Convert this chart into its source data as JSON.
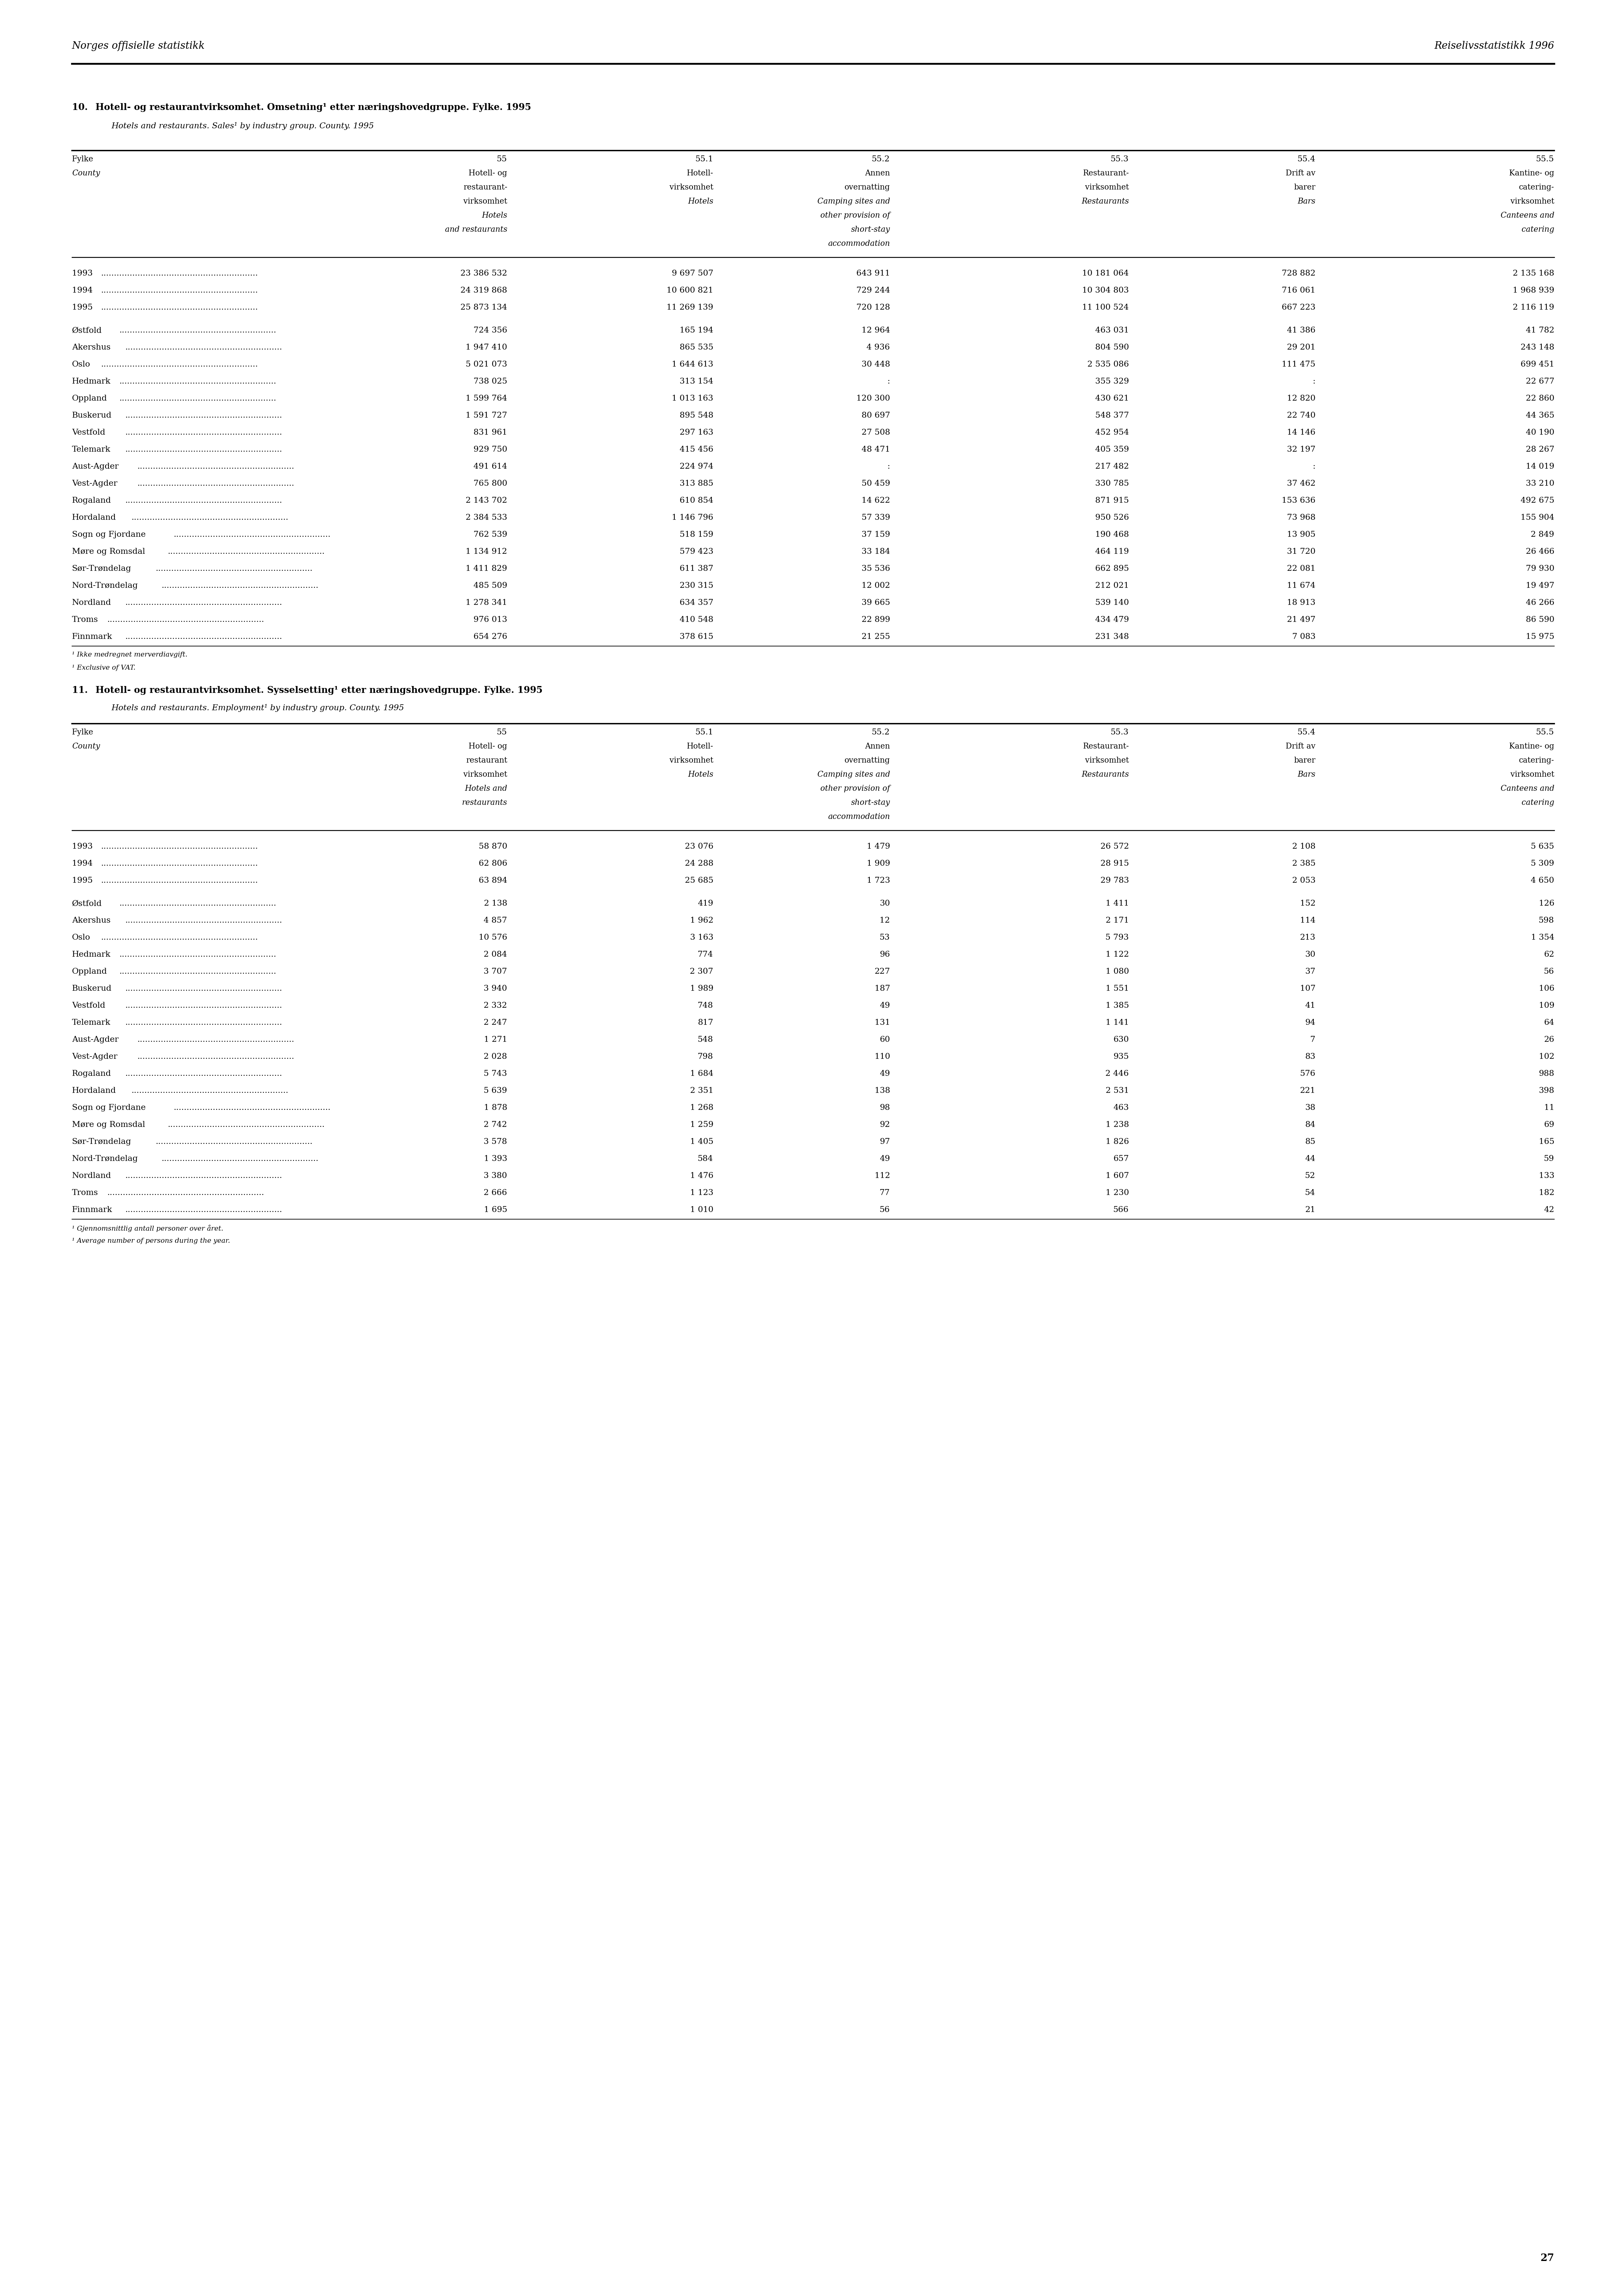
{
  "page_header_left": "Norges offisielle statistikk",
  "page_header_right": "Reiselivsstatistikk 1996",
  "page_number": "27",
  "table10": {
    "title_no": "10.  Hotell- og restaurantvirksomhet. Omsetning¹ etter næringshovedgruppe. Fylke. 1995",
    "title_en": "Hotels and restaurants. Sales¹ by industry group. County. 1995",
    "col_headers": {
      "col1_label": "Fylke",
      "col1_label_en": "County",
      "col2_code": "55",
      "col2_line1": "Hotell- og",
      "col2_line2": "restaurant-",
      "col2_line3": "virksomhet",
      "col2_line4": "Hotels",
      "col2_line5": "and restaurants",
      "col3_code": "55.1",
      "col3_line1": "Hotell-",
      "col3_line2": "virksomhet",
      "col3_line3": "Hotels",
      "col4_code": "55.2",
      "col4_line1": "Annen",
      "col4_line2": "overnatting",
      "col4_line3": "Camping sites and",
      "col4_line4": "other provision of",
      "col4_line5": "short-stay",
      "col4_line6": "accommodation",
      "col5_code": "55.3",
      "col5_line1": "Restaurant-",
      "col5_line2": "virksomhet",
      "col5_line3": "Restaurants",
      "col6_code": "55.4",
      "col6_line1": "Drift av",
      "col6_line2": "barer",
      "col6_line3": "Bars",
      "col7_code": "55.5",
      "col7_line1": "Kantine- og",
      "col7_line2": "catering-",
      "col7_line3": "virksomhet",
      "col7_line4": "Canteens and",
      "col7_line5": "catering"
    },
    "rows": [
      {
        "label": "1993",
        "dots": true,
        "v1": "23 386 532",
        "v2": "9 697 507",
        "v3": "643 911",
        "v4": "10 181 064",
        "v5": "728 882",
        "v6": "2 135 168"
      },
      {
        "label": "1994",
        "dots": true,
        "v1": "24 319 868",
        "v2": "10 600 821",
        "v3": "729 244",
        "v4": "10 304 803",
        "v5": "716 061",
        "v6": "1 968 939"
      },
      {
        "label": "1995",
        "dots": true,
        "v1": "25 873 134",
        "v2": "11 269 139",
        "v3": "720 128",
        "v4": "11 100 524",
        "v5": "667 223",
        "v6": "2 116 119"
      },
      {
        "label": "",
        "dots": false,
        "v1": "",
        "v2": "",
        "v3": "",
        "v4": "",
        "v5": "",
        "v6": ""
      },
      {
        "label": "Østfold",
        "dots": true,
        "v1": "724 356",
        "v2": "165 194",
        "v3": "12 964",
        "v4": "463 031",
        "v5": "41 386",
        "v6": "41 782"
      },
      {
        "label": "Akershus",
        "dots": true,
        "v1": "1 947 410",
        "v2": "865 535",
        "v3": "4 936",
        "v4": "804 590",
        "v5": "29 201",
        "v6": "243 148"
      },
      {
        "label": "Oslo",
        "dots": true,
        "v1": "5 021 073",
        "v2": "1 644 613",
        "v3": "30 448",
        "v4": "2 535 086",
        "v5": "111 475",
        "v6": "699 451"
      },
      {
        "label": "Hedmark",
        "dots": true,
        "v1": "738 025",
        "v2": "313 154",
        "v3": ":",
        "v4": "355 329",
        "v5": ":",
        "v6": "22 677"
      },
      {
        "label": "Oppland",
        "dots": true,
        "v1": "1 599 764",
        "v2": "1 013 163",
        "v3": "120 300",
        "v4": "430 621",
        "v5": "12 820",
        "v6": "22 860"
      },
      {
        "label": "Buskerud",
        "dots": true,
        "v1": "1 591 727",
        "v2": "895 548",
        "v3": "80 697",
        "v4": "548 377",
        "v5": "22 740",
        "v6": "44 365"
      },
      {
        "label": "Vestfold",
        "dots": true,
        "v1": "831 961",
        "v2": "297 163",
        "v3": "27 508",
        "v4": "452 954",
        "v5": "14 146",
        "v6": "40 190"
      },
      {
        "label": "Telemark",
        "dots": true,
        "v1": "929 750",
        "v2": "415 456",
        "v3": "48 471",
        "v4": "405 359",
        "v5": "32 197",
        "v6": "28 267"
      },
      {
        "label": "Aust-Agder",
        "dots": true,
        "v1": "491 614",
        "v2": "224 974",
        "v3": ":",
        "v4": "217 482",
        "v5": ":",
        "v6": "14 019"
      },
      {
        "label": "Vest-Agder",
        "dots": true,
        "v1": "765 800",
        "v2": "313 885",
        "v3": "50 459",
        "v4": "330 785",
        "v5": "37 462",
        "v6": "33 210"
      },
      {
        "label": "Rogaland",
        "dots": true,
        "v1": "2 143 702",
        "v2": "610 854",
        "v3": "14 622",
        "v4": "871 915",
        "v5": "153 636",
        "v6": "492 675"
      },
      {
        "label": "Hordaland",
        "dots": true,
        "v1": "2 384 533",
        "v2": "1 146 796",
        "v3": "57 339",
        "v4": "950 526",
        "v5": "73 968",
        "v6": "155 904"
      },
      {
        "label": "Sogn og Fjordane",
        "dots": true,
        "v1": "762 539",
        "v2": "518 159",
        "v3": "37 159",
        "v4": "190 468",
        "v5": "13 905",
        "v6": "2 849"
      },
      {
        "label": "Møre og Romsdal",
        "dots": true,
        "v1": "1 134 912",
        "v2": "579 423",
        "v3": "33 184",
        "v4": "464 119",
        "v5": "31 720",
        "v6": "26 466"
      },
      {
        "label": "Sør-Trøndelag",
        "dots": true,
        "v1": "1 411 829",
        "v2": "611 387",
        "v3": "35 536",
        "v4": "662 895",
        "v5": "22 081",
        "v6": "79 930"
      },
      {
        "label": "Nord-Trøndelag",
        "dots": true,
        "v1": "485 509",
        "v2": "230 315",
        "v3": "12 002",
        "v4": "212 021",
        "v5": "11 674",
        "v6": "19 497"
      },
      {
        "label": "Nordland",
        "dots": true,
        "v1": "1 278 341",
        "v2": "634 357",
        "v3": "39 665",
        "v4": "539 140",
        "v5": "18 913",
        "v6": "46 266"
      },
      {
        "label": "Troms",
        "dots": true,
        "v1": "976 013",
        "v2": "410 548",
        "v3": "22 899",
        "v4": "434 479",
        "v5": "21 497",
        "v6": "86 590"
      },
      {
        "label": "Finnmark",
        "dots": true,
        "v1": "654 276",
        "v2": "378 615",
        "v3": "21 255",
        "v4": "231 348",
        "v5": "7 083",
        "v6": "15 975"
      }
    ],
    "footnote1_no": "¹ Ikke medregnet merverdiavgift.",
    "footnote1_en": "¹ Exclusive of VAT."
  },
  "table11": {
    "title_no": "11.  Hotell- og restaurantvirksomhet. Sysselsetting¹ etter næringshovedgruppe. Fylke. 1995",
    "title_en": "Hotels and restaurants. Employment¹ by industry group. County. 1995",
    "col_headers": {
      "col1_label": "Fylke",
      "col1_label_en": "County",
      "col2_code": "55",
      "col2_line1": "Hotell- og",
      "col2_line2": "restaurant",
      "col2_line3": "virksomhet",
      "col2_line4": "Hotels and",
      "col2_line5": "restaurants",
      "col3_code": "55.1",
      "col3_line1": "Hotell-",
      "col3_line2": "virksomhet",
      "col3_line3": "Hotels",
      "col4_code": "55.2",
      "col4_line1": "Annen",
      "col4_line2": "overnatting",
      "col4_line3": "Camping sites and",
      "col4_line4": "other provision of",
      "col4_line5": "short-stay",
      "col4_line6": "accommodation",
      "col5_code": "55.3",
      "col5_line1": "Restaurant-",
      "col5_line2": "virksomhet",
      "col5_line3": "Restaurants",
      "col6_code": "55.4",
      "col6_line1": "Drift av",
      "col6_line2": "barer",
      "col6_line3": "Bars",
      "col7_code": "55.5",
      "col7_line1": "Kantine- og",
      "col7_line2": "catering-",
      "col7_line3": "virksomhet",
      "col7_line4": "Canteens and",
      "col7_line5": "catering"
    },
    "rows": [
      {
        "label": "1993",
        "dots": true,
        "v1": "58 870",
        "v2": "23 076",
        "v3": "1 479",
        "v4": "26 572",
        "v5": "2 108",
        "v6": "5 635"
      },
      {
        "label": "1994",
        "dots": true,
        "v1": "62 806",
        "v2": "24 288",
        "v3": "1 909",
        "v4": "28 915",
        "v5": "2 385",
        "v6": "5 309"
      },
      {
        "label": "1995",
        "dots": true,
        "v1": "63 894",
        "v2": "25 685",
        "v3": "1 723",
        "v4": "29 783",
        "v5": "2 053",
        "v6": "4 650"
      },
      {
        "label": "",
        "dots": false,
        "v1": "",
        "v2": "",
        "v3": "",
        "v4": "",
        "v5": "",
        "v6": ""
      },
      {
        "label": "Østfold",
        "dots": true,
        "v1": "2 138",
        "v2": "419",
        "v3": "30",
        "v4": "1 411",
        "v5": "152",
        "v6": "126"
      },
      {
        "label": "Akershus",
        "dots": true,
        "v1": "4 857",
        "v2": "1 962",
        "v3": "12",
        "v4": "2 171",
        "v5": "114",
        "v6": "598"
      },
      {
        "label": "Oslo",
        "dots": true,
        "v1": "10 576",
        "v2": "3 163",
        "v3": "53",
        "v4": "5 793",
        "v5": "213",
        "v6": "1 354"
      },
      {
        "label": "Hedmark",
        "dots": true,
        "v1": "2 084",
        "v2": "774",
        "v3": "96",
        "v4": "1 122",
        "v5": "30",
        "v6": "62"
      },
      {
        "label": "Oppland",
        "dots": true,
        "v1": "3 707",
        "v2": "2 307",
        "v3": "227",
        "v4": "1 080",
        "v5": "37",
        "v6": "56"
      },
      {
        "label": "Buskerud",
        "dots": true,
        "v1": "3 940",
        "v2": "1 989",
        "v3": "187",
        "v4": "1 551",
        "v5": "107",
        "v6": "106"
      },
      {
        "label": "Vestfold",
        "dots": true,
        "v1": "2 332",
        "v2": "748",
        "v3": "49",
        "v4": "1 385",
        "v5": "41",
        "v6": "109"
      },
      {
        "label": "Telemark",
        "dots": true,
        "v1": "2 247",
        "v2": "817",
        "v3": "131",
        "v4": "1 141",
        "v5": "94",
        "v6": "64"
      },
      {
        "label": "Aust-Agder",
        "dots": true,
        "v1": "1 271",
        "v2": "548",
        "v3": "60",
        "v4": "630",
        "v5": "7",
        "v6": "26"
      },
      {
        "label": "Vest-Agder",
        "dots": true,
        "v1": "2 028",
        "v2": "798",
        "v3": "110",
        "v4": "935",
        "v5": "83",
        "v6": "102"
      },
      {
        "label": "Rogaland",
        "dots": true,
        "v1": "5 743",
        "v2": "1 684",
        "v3": "49",
        "v4": "2 446",
        "v5": "576",
        "v6": "988"
      },
      {
        "label": "Hordaland",
        "dots": true,
        "v1": "5 639",
        "v2": "2 351",
        "v3": "138",
        "v4": "2 531",
        "v5": "221",
        "v6": "398"
      },
      {
        "label": "Sogn og Fjordane",
        "dots": true,
        "v1": "1 878",
        "v2": "1 268",
        "v3": "98",
        "v4": "463",
        "v5": "38",
        "v6": "11"
      },
      {
        "label": "Møre og Romsdal",
        "dots": true,
        "v1": "2 742",
        "v2": "1 259",
        "v3": "92",
        "v4": "1 238",
        "v5": "84",
        "v6": "69"
      },
      {
        "label": "Sør-Trøndelag",
        "dots": true,
        "v1": "3 578",
        "v2": "1 405",
        "v3": "97",
        "v4": "1 826",
        "v5": "85",
        "v6": "165"
      },
      {
        "label": "Nord-Trøndelag",
        "dots": true,
        "v1": "1 393",
        "v2": "584",
        "v3": "49",
        "v4": "657",
        "v5": "44",
        "v6": "59"
      },
      {
        "label": "Nordland",
        "dots": true,
        "v1": "3 380",
        "v2": "1 476",
        "v3": "112",
        "v4": "1 607",
        "v5": "52",
        "v6": "133"
      },
      {
        "label": "Troms",
        "dots": true,
        "v1": "2 666",
        "v2": "1 123",
        "v3": "77",
        "v4": "1 230",
        "v5": "54",
        "v6": "182"
      },
      {
        "label": "Finnmark",
        "dots": true,
        "v1": "1 695",
        "v2": "1 010",
        "v3": "56",
        "v4": "566",
        "v5": "21",
        "v6": "42"
      }
    ],
    "footnote1_no": "¹ Gjennomsnittlig antall personer over året.",
    "footnote1_en": "¹ Average number of persons during the year."
  }
}
